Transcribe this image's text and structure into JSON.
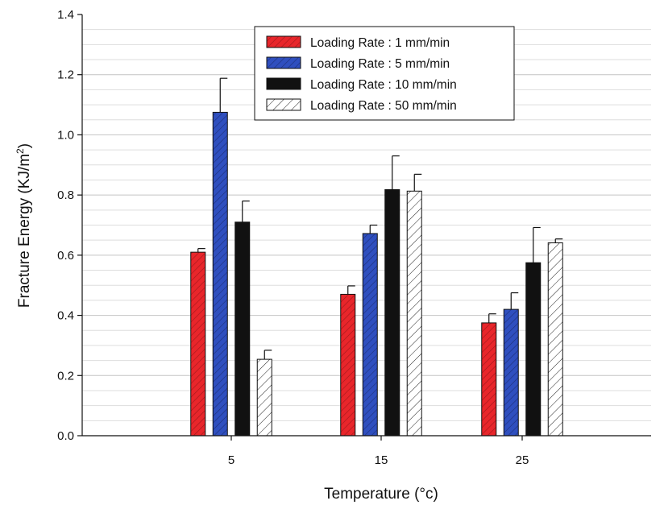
{
  "chart_data": {
    "type": "bar",
    "xlabel": "Temperature (°c)",
    "ylabel": "Fracture Energy (KJ/m²)",
    "ylabel_main": "Fracture Energy (KJ/m",
    "ylabel_sup": "2",
    "ylabel_close": ")",
    "categories": [
      "5",
      "15",
      "25"
    ],
    "ylim": [
      0,
      1.4
    ],
    "y_ticks": [
      "0.0",
      "0.2",
      "0.4",
      "0.6",
      "0.8",
      "1.0",
      "1.2",
      "1.4"
    ],
    "grid": true,
    "legend_position": "top-center",
    "series": [
      {
        "name": "Loading Rate : 1 mm/min",
        "values": [
          0.61,
          0.47,
          0.375
        ],
        "errors": [
          0.012,
          0.028,
          0.03
        ],
        "fill": "#e8262b",
        "pattern": "red-hatch"
      },
      {
        "name": "Loading Rate : 5 mm/min",
        "values": [
          1.075,
          0.672,
          0.42
        ],
        "errors": [
          0.113,
          0.028,
          0.055
        ],
        "fill": "#2f4fbf",
        "pattern": "blue-hatch"
      },
      {
        "name": "Loading Rate : 10 mm/min",
        "values": [
          0.71,
          0.818,
          0.575
        ],
        "errors": [
          0.07,
          0.112,
          0.117
        ],
        "fill": "#111111",
        "pattern": "solid"
      },
      {
        "name": "Loading Rate : 50 mm/min",
        "values": [
          0.254,
          0.813,
          0.641
        ],
        "errors": [
          0.03,
          0.056,
          0.013
        ],
        "fill": "#ffffff",
        "pattern": "white-hatch"
      }
    ]
  }
}
